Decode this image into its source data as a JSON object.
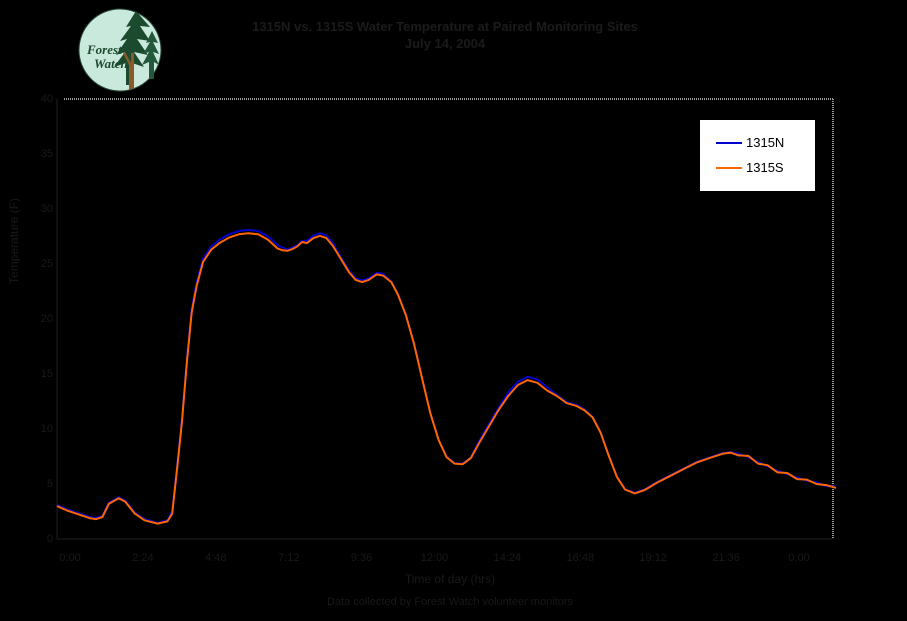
{
  "title": {
    "line1": "1315N vs. 1315S Water Temperature at Paired Monitoring Sites",
    "line2": "July 14, 2004"
  },
  "logo": {
    "line1": "Forest",
    "line2": "Watch",
    "circle_color": "#c9e9dc",
    "tree_color": "#1b4a2e",
    "trunk_color": "#8a5a2b",
    "text_color": "#1b4a2e"
  },
  "legend": {
    "items": [
      {
        "label": "1315N",
        "color": "#0000cc"
      },
      {
        "label": "1315S",
        "color": "#ff6600"
      }
    ]
  },
  "axes": {
    "y_title": "Temperature (F)",
    "x_title": "Time of day (hrs)",
    "y_ticks": [
      "40",
      "35",
      "30",
      "25",
      "20",
      "15",
      "10",
      "5",
      "0"
    ],
    "x_ticks": [
      "0:00",
      "2:24",
      "4:48",
      "7:12",
      "9:36",
      "12:00",
      "14:24",
      "16:48",
      "19:12",
      "21:36",
      "0:00"
    ]
  },
  "caption": "Data collected by Forest Watch volunteer monitors",
  "colors": {
    "background": "#000000",
    "frame_dash": "#999999",
    "hidden_text": "#191919"
  },
  "chart_data": {
    "type": "line",
    "title": "1315N vs. 1315S Water Temperature at Paired Monitoring Sites",
    "xlabel": "Time of day (hrs)",
    "ylabel": "Temperature (F)",
    "xlim": [
      0,
      24
    ],
    "ylim": [
      0,
      40
    ],
    "grid": false,
    "legend_position": "upper right",
    "x": [
      0,
      0.3,
      0.6,
      1.0,
      1.2,
      1.4,
      1.6,
      1.9,
      2.1,
      2.4,
      2.7,
      3.1,
      3.4,
      3.55,
      3.7,
      3.85,
      4.0,
      4.15,
      4.3,
      4.5,
      4.75,
      5.0,
      5.3,
      5.6,
      5.9,
      6.2,
      6.5,
      6.8,
      6.95,
      7.1,
      7.25,
      7.4,
      7.55,
      7.7,
      7.9,
      8.1,
      8.3,
      8.5,
      8.75,
      9.0,
      9.2,
      9.4,
      9.6,
      9.85,
      10.05,
      10.3,
      10.5,
      10.75,
      11.0,
      11.25,
      11.5,
      11.75,
      12.0,
      12.25,
      12.5,
      12.75,
      13.0,
      13.3,
      13.6,
      13.9,
      14.2,
      14.5,
      14.8,
      15.1,
      15.4,
      15.7,
      16.0,
      16.25,
      16.5,
      16.75,
      17.0,
      17.25,
      17.5,
      17.8,
      18.1,
      18.5,
      18.9,
      19.3,
      19.7,
      20.1,
      20.5,
      20.75,
      21.0,
      21.3,
      21.6,
      21.9,
      22.2,
      22.5,
      22.8,
      23.1,
      23.4,
      23.7,
      24.0
    ],
    "series": [
      {
        "name": "1315N",
        "color": "#0000cc",
        "values": [
          3.1,
          2.7,
          2.4,
          2.0,
          1.9,
          2.1,
          3.3,
          3.8,
          3.5,
          2.4,
          1.8,
          1.45,
          1.7,
          2.5,
          6.7,
          11.0,
          16.3,
          20.9,
          23.3,
          25.5,
          26.6,
          27.2,
          27.7,
          28.0,
          28.1,
          28.0,
          27.5,
          26.7,
          26.5,
          26.3,
          26.5,
          26.7,
          27.1,
          27.1,
          27.6,
          27.8,
          27.6,
          26.9,
          25.6,
          24.4,
          23.7,
          23.5,
          23.7,
          24.2,
          24.1,
          23.4,
          22.3,
          20.4,
          17.8,
          14.6,
          11.5,
          9.1,
          7.5,
          6.9,
          6.85,
          7.4,
          8.9,
          10.4,
          11.9,
          13.3,
          14.3,
          14.75,
          14.5,
          13.8,
          13.1,
          12.45,
          12.2,
          11.8,
          11.1,
          9.7,
          7.6,
          5.7,
          4.55,
          4.2,
          4.5,
          5.2,
          5.8,
          6.4,
          7.0,
          7.4,
          7.8,
          7.9,
          7.75,
          7.45,
          7.0,
          6.6,
          6.2,
          5.9,
          5.6,
          5.3,
          5.15,
          4.8,
          4.8
        ]
      },
      {
        "name": "1315S",
        "color": "#ff6600",
        "values": [
          3.0,
          2.6,
          2.3,
          1.9,
          1.8,
          2.0,
          3.2,
          3.7,
          3.4,
          2.3,
          1.7,
          1.4,
          1.6,
          2.3,
          6.4,
          10.7,
          16.0,
          20.6,
          23.0,
          25.2,
          26.3,
          26.9,
          27.4,
          27.7,
          27.8,
          27.7,
          27.2,
          26.4,
          26.25,
          26.2,
          26.35,
          26.6,
          27.0,
          26.9,
          27.35,
          27.55,
          27.35,
          26.65,
          25.45,
          24.25,
          23.55,
          23.35,
          23.55,
          24.05,
          23.95,
          23.35,
          22.25,
          20.35,
          17.75,
          14.55,
          11.45,
          9.05,
          7.45,
          6.85,
          6.8,
          7.35,
          8.7,
          10.2,
          11.7,
          13.0,
          14.0,
          14.45,
          14.2,
          13.5,
          13.0,
          12.35,
          12.1,
          11.7,
          11.05,
          9.65,
          7.55,
          5.65,
          4.5,
          4.15,
          4.45,
          5.15,
          5.75,
          6.35,
          6.95,
          7.35,
          7.75,
          7.85,
          7.6,
          7.55,
          6.85,
          6.7,
          6.05,
          6.0,
          5.45,
          5.4,
          5.0,
          4.9,
          4.65
        ]
      }
    ]
  }
}
